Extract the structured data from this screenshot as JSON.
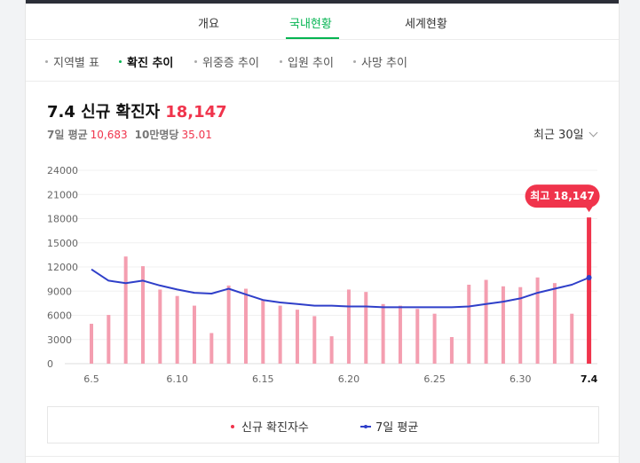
{
  "tabs": [
    {
      "label": "개요",
      "active": false
    },
    {
      "label": "국내현황",
      "active": true
    },
    {
      "label": "세계현황",
      "active": false
    }
  ],
  "subnav": [
    {
      "label": "지역별 표",
      "active": false
    },
    {
      "label": "확진 추이",
      "active": true
    },
    {
      "label": "위중증 추이",
      "active": false
    },
    {
      "label": "입원 추이",
      "active": false
    },
    {
      "label": "사망 추이",
      "active": false
    }
  ],
  "summary": {
    "title": "7.4 신규 확진자",
    "value": "18,147",
    "avg_label": "7일 평균",
    "avg_value": "10,683",
    "per100k_label": "10만명당",
    "per100k_value": "35.01"
  },
  "period_select": {
    "label": "최근 30일"
  },
  "colors": {
    "accent_green": "#03b451",
    "bar": "#f49eb0",
    "bar_highlight": "#f0344c",
    "avg_line": "#2f3fc9"
  },
  "chart_data": {
    "type": "bar",
    "x": [
      "6.5",
      "6.6",
      "6.7",
      "6.8",
      "6.9",
      "6.10",
      "6.11",
      "6.12",
      "6.13",
      "6.14",
      "6.15",
      "6.16",
      "6.17",
      "6.18",
      "6.19",
      "6.20",
      "6.21",
      "6.22",
      "6.23",
      "6.24",
      "6.25",
      "6.26",
      "6.27",
      "6.28",
      "6.29",
      "6.30",
      "7.1",
      "7.2",
      "7.3",
      "7.4"
    ],
    "x_tick_labels": [
      "6.5",
      "6.10",
      "6.15",
      "6.20",
      "6.25",
      "6.30",
      "7.4"
    ],
    "series": [
      {
        "name": "신규 확진자수",
        "type": "bar",
        "values": [
          4950,
          6050,
          13300,
          12100,
          9200,
          8400,
          7200,
          3800,
          9700,
          9300,
          7900,
          7200,
          6700,
          5900,
          3400,
          9200,
          8900,
          7400,
          7200,
          6800,
          6200,
          3300,
          9800,
          10400,
          9600,
          9500,
          10700,
          10000,
          6200,
          18147
        ]
      },
      {
        "name": "7일 평균",
        "type": "line",
        "values": [
          11700,
          10300,
          10000,
          10300,
          9700,
          9200,
          8800,
          8700,
          9300,
          8600,
          7900,
          7600,
          7400,
          7200,
          7200,
          7100,
          7100,
          7000,
          7000,
          7000,
          7000,
          7000,
          7100,
          7400,
          7700,
          8100,
          8800,
          9300,
          9800,
          10683
        ]
      }
    ],
    "yticks": [
      0,
      3000,
      6000,
      9000,
      12000,
      15000,
      18000,
      21000,
      24000
    ],
    "ylim": [
      0,
      24000
    ],
    "grid": true,
    "annotation": {
      "label": "최고 18,147"
    },
    "highlight_index": 29
  }
}
